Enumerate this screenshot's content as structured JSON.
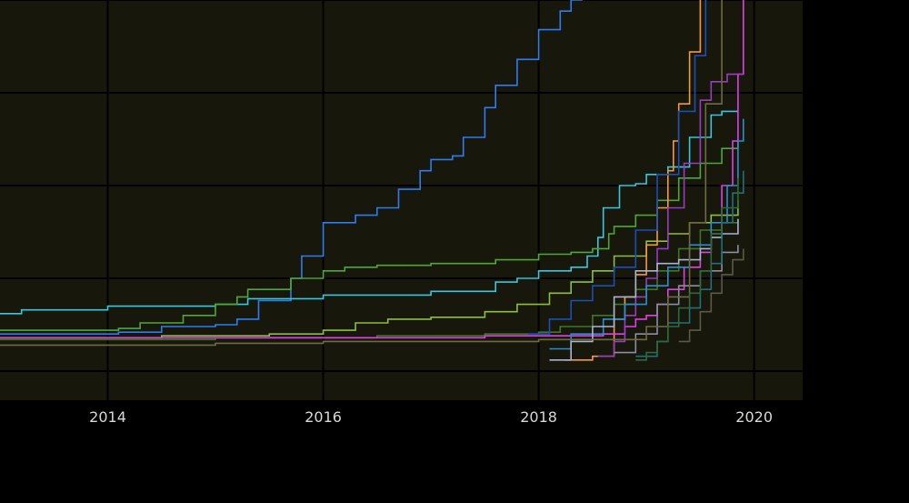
{
  "chart_data": {
    "type": "line",
    "title": "",
    "xlabel": "",
    "ylabel": "",
    "grid": true,
    "background_color": "#17170c",
    "gridline_color": "#000000",
    "xlim": [
      2013.0,
      2020.45
    ],
    "ylim": [
      0,
      100
    ],
    "x_ticks": [
      2014,
      2016,
      2018,
      2020
    ],
    "x_tick_labels": [
      "2014",
      "2016",
      "2018",
      "2020"
    ],
    "y_gridlines": [
      0,
      25,
      50,
      75,
      100
    ],
    "series": [
      {
        "color": "#2e7cf0",
        "step": true,
        "points": [
          [
            2013.0,
            10
          ],
          [
            2014.1,
            10.5
          ],
          [
            2014.5,
            12
          ],
          [
            2015.0,
            12.5
          ],
          [
            2015.2,
            14
          ],
          [
            2015.4,
            19
          ],
          [
            2015.7,
            25
          ],
          [
            2015.8,
            31
          ],
          [
            2016.0,
            40
          ],
          [
            2016.3,
            42
          ],
          [
            2016.5,
            44
          ],
          [
            2016.7,
            49
          ],
          [
            2016.9,
            54
          ],
          [
            2017.0,
            57
          ],
          [
            2017.2,
            58
          ],
          [
            2017.3,
            63
          ],
          [
            2017.5,
            71
          ],
          [
            2017.6,
            77
          ],
          [
            2017.8,
            84
          ],
          [
            2018.0,
            92
          ],
          [
            2018.2,
            97
          ],
          [
            2018.3,
            100
          ],
          [
            2018.4,
            103
          ]
        ]
      },
      {
        "color": "#39c6e0",
        "step": true,
        "points": [
          [
            2013.0,
            15.5
          ],
          [
            2013.2,
            16.5
          ],
          [
            2014.0,
            17.5
          ],
          [
            2015.0,
            18
          ],
          [
            2015.3,
            19.5
          ],
          [
            2016.0,
            20.5
          ],
          [
            2017.0,
            21.5
          ],
          [
            2017.6,
            24
          ],
          [
            2017.8,
            25
          ],
          [
            2018.0,
            27
          ],
          [
            2018.3,
            28
          ],
          [
            2018.45,
            31
          ],
          [
            2018.55,
            36
          ],
          [
            2018.6,
            44
          ],
          [
            2018.75,
            50
          ],
          [
            2018.9,
            50.5
          ],
          [
            2019.0,
            53
          ],
          [
            2019.2,
            55
          ],
          [
            2019.4,
            63
          ],
          [
            2019.6,
            69
          ],
          [
            2019.7,
            70
          ],
          [
            2019.85,
            70
          ]
        ]
      },
      {
        "color": "#4ea838",
        "step": true,
        "points": [
          [
            2013.0,
            11
          ],
          [
            2014.1,
            11.5
          ],
          [
            2014.3,
            13
          ],
          [
            2014.7,
            15
          ],
          [
            2015.0,
            18
          ],
          [
            2015.2,
            20
          ],
          [
            2015.3,
            22
          ],
          [
            2015.7,
            25
          ],
          [
            2016.0,
            27
          ],
          [
            2016.2,
            28
          ],
          [
            2016.5,
            28.5
          ],
          [
            2017.0,
            29
          ],
          [
            2017.6,
            30
          ],
          [
            2018.0,
            31.5
          ],
          [
            2018.3,
            32
          ],
          [
            2018.5,
            33
          ],
          [
            2018.65,
            37
          ],
          [
            2018.7,
            39
          ],
          [
            2018.9,
            42
          ],
          [
            2019.1,
            46
          ],
          [
            2019.3,
            52
          ],
          [
            2019.5,
            56
          ],
          [
            2019.7,
            60
          ],
          [
            2019.85,
            62
          ]
        ]
      },
      {
        "color": "#8cbf3f",
        "step": true,
        "points": [
          [
            2013.0,
            9
          ],
          [
            2014.5,
            9.5
          ],
          [
            2015.5,
            10
          ],
          [
            2016.0,
            11
          ],
          [
            2016.3,
            13
          ],
          [
            2016.6,
            14
          ],
          [
            2017.0,
            14.5
          ],
          [
            2017.5,
            16
          ],
          [
            2017.8,
            18
          ],
          [
            2018.1,
            21
          ],
          [
            2018.3,
            24
          ],
          [
            2018.5,
            27
          ],
          [
            2018.7,
            31
          ],
          [
            2019.0,
            35
          ],
          [
            2019.2,
            37
          ],
          [
            2019.4,
            40
          ],
          [
            2019.6,
            42
          ],
          [
            2019.85,
            46
          ]
        ]
      },
      {
        "color": "#3c7820",
        "step": true,
        "points": [
          [
            2013.0,
            8.5
          ],
          [
            2015.0,
            9
          ],
          [
            2016.5,
            9.5
          ],
          [
            2017.5,
            10
          ],
          [
            2018.0,
            10.5
          ],
          [
            2018.2,
            12
          ],
          [
            2018.5,
            15
          ],
          [
            2018.7,
            18
          ],
          [
            2018.9,
            22
          ],
          [
            2019.1,
            27
          ],
          [
            2019.3,
            33
          ],
          [
            2019.5,
            38
          ],
          [
            2019.7,
            40
          ],
          [
            2019.85,
            41
          ]
        ]
      },
      {
        "color": "#f59a3a",
        "step": true,
        "points": [
          [
            2018.25,
            3
          ],
          [
            2018.5,
            4
          ],
          [
            2018.7,
            14
          ],
          [
            2018.8,
            20
          ],
          [
            2018.9,
            26
          ],
          [
            2019.0,
            34
          ],
          [
            2019.1,
            44
          ],
          [
            2019.2,
            54
          ],
          [
            2019.25,
            62
          ],
          [
            2019.3,
            72
          ],
          [
            2019.4,
            86
          ],
          [
            2019.5,
            103
          ]
        ]
      },
      {
        "color": "#e040e8",
        "step": true,
        "points": [
          [
            2013.0,
            9
          ],
          [
            2016.0,
            9
          ],
          [
            2017.5,
            9.5
          ],
          [
            2018.0,
            9.5
          ],
          [
            2018.4,
            9.5
          ],
          [
            2018.6,
            10
          ],
          [
            2018.8,
            12
          ],
          [
            2018.9,
            14
          ],
          [
            2019.0,
            15
          ],
          [
            2019.1,
            18
          ],
          [
            2019.2,
            22
          ],
          [
            2019.35,
            28
          ],
          [
            2019.5,
            32
          ],
          [
            2019.6,
            37
          ],
          [
            2019.7,
            50
          ],
          [
            2019.8,
            62
          ],
          [
            2019.85,
            80
          ],
          [
            2019.9,
            103
          ]
        ]
      },
      {
        "color": "#9a3cc0",
        "step": true,
        "points": [
          [
            2018.55,
            4
          ],
          [
            2018.7,
            8
          ],
          [
            2018.8,
            15
          ],
          [
            2018.9,
            20
          ],
          [
            2019.0,
            25
          ],
          [
            2019.1,
            33
          ],
          [
            2019.2,
            44
          ],
          [
            2019.35,
            56
          ],
          [
            2019.5,
            73
          ],
          [
            2019.6,
            78
          ],
          [
            2019.75,
            80
          ],
          [
            2019.9,
            80
          ]
        ]
      },
      {
        "color": "#1a4fb8",
        "step": true,
        "points": [
          [
            2017.9,
            10
          ],
          [
            2018.1,
            14
          ],
          [
            2018.3,
            19
          ],
          [
            2018.5,
            23
          ],
          [
            2018.7,
            28
          ],
          [
            2018.9,
            38
          ],
          [
            2019.1,
            53
          ],
          [
            2019.3,
            70
          ],
          [
            2019.45,
            85
          ],
          [
            2019.55,
            103
          ]
        ]
      },
      {
        "color": "#2a8fd0",
        "step": true,
        "points": [
          [
            2018.1,
            6
          ],
          [
            2018.3,
            10
          ],
          [
            2018.6,
            14
          ],
          [
            2018.8,
            18
          ],
          [
            2019.0,
            23
          ],
          [
            2019.2,
            28
          ],
          [
            2019.4,
            34
          ],
          [
            2019.6,
            40
          ],
          [
            2019.75,
            50
          ],
          [
            2019.85,
            62
          ],
          [
            2019.9,
            68
          ]
        ]
      },
      {
        "color": "#aab4d0",
        "step": true,
        "points": [
          [
            2018.1,
            3
          ],
          [
            2018.3,
            8
          ],
          [
            2018.5,
            12
          ],
          [
            2018.7,
            20
          ],
          [
            2018.9,
            27
          ],
          [
            2019.1,
            29
          ],
          [
            2019.3,
            30
          ],
          [
            2019.5,
            33
          ],
          [
            2019.6,
            36
          ],
          [
            2019.7,
            37
          ],
          [
            2019.85,
            41
          ]
        ]
      },
      {
        "color": "#8a8ea0",
        "step": true,
        "points": [
          [
            2018.7,
            5
          ],
          [
            2018.9,
            10
          ],
          [
            2019.1,
            18
          ],
          [
            2019.3,
            23
          ],
          [
            2019.5,
            27
          ],
          [
            2019.7,
            32
          ],
          [
            2019.85,
            34
          ]
        ]
      },
      {
        "color": "#20707a",
        "step": true,
        "points": [
          [
            2018.9,
            4
          ],
          [
            2019.1,
            8
          ],
          [
            2019.2,
            13
          ],
          [
            2019.4,
            17
          ],
          [
            2019.5,
            22
          ],
          [
            2019.6,
            29
          ],
          [
            2019.7,
            40
          ],
          [
            2019.8,
            48
          ],
          [
            2019.9,
            54
          ]
        ]
      },
      {
        "color": "#6e6a42",
        "step": true,
        "points": [
          [
            2013.0,
            7
          ],
          [
            2015.0,
            7.5
          ],
          [
            2016.0,
            8
          ],
          [
            2018.0,
            8.5
          ],
          [
            2019.0,
            12
          ],
          [
            2019.2,
            20
          ],
          [
            2019.4,
            40
          ],
          [
            2019.55,
            72
          ],
          [
            2019.7,
            103
          ]
        ]
      },
      {
        "color": "#5a5a48",
        "step": true,
        "points": [
          [
            2019.3,
            8
          ],
          [
            2019.4,
            11
          ],
          [
            2019.5,
            16
          ],
          [
            2019.6,
            21
          ],
          [
            2019.7,
            26
          ],
          [
            2019.8,
            30
          ],
          [
            2019.9,
            33
          ]
        ]
      },
      {
        "color": "#2c6a3c",
        "step": true,
        "points": [
          [
            2018.9,
            3
          ],
          [
            2019.0,
            5
          ],
          [
            2019.1,
            8
          ],
          [
            2019.2,
            12
          ],
          [
            2019.3,
            17
          ],
          [
            2019.4,
            21
          ],
          [
            2019.5,
            27
          ],
          [
            2019.6,
            37
          ],
          [
            2019.7,
            44
          ],
          [
            2019.85,
            52
          ]
        ]
      }
    ]
  }
}
